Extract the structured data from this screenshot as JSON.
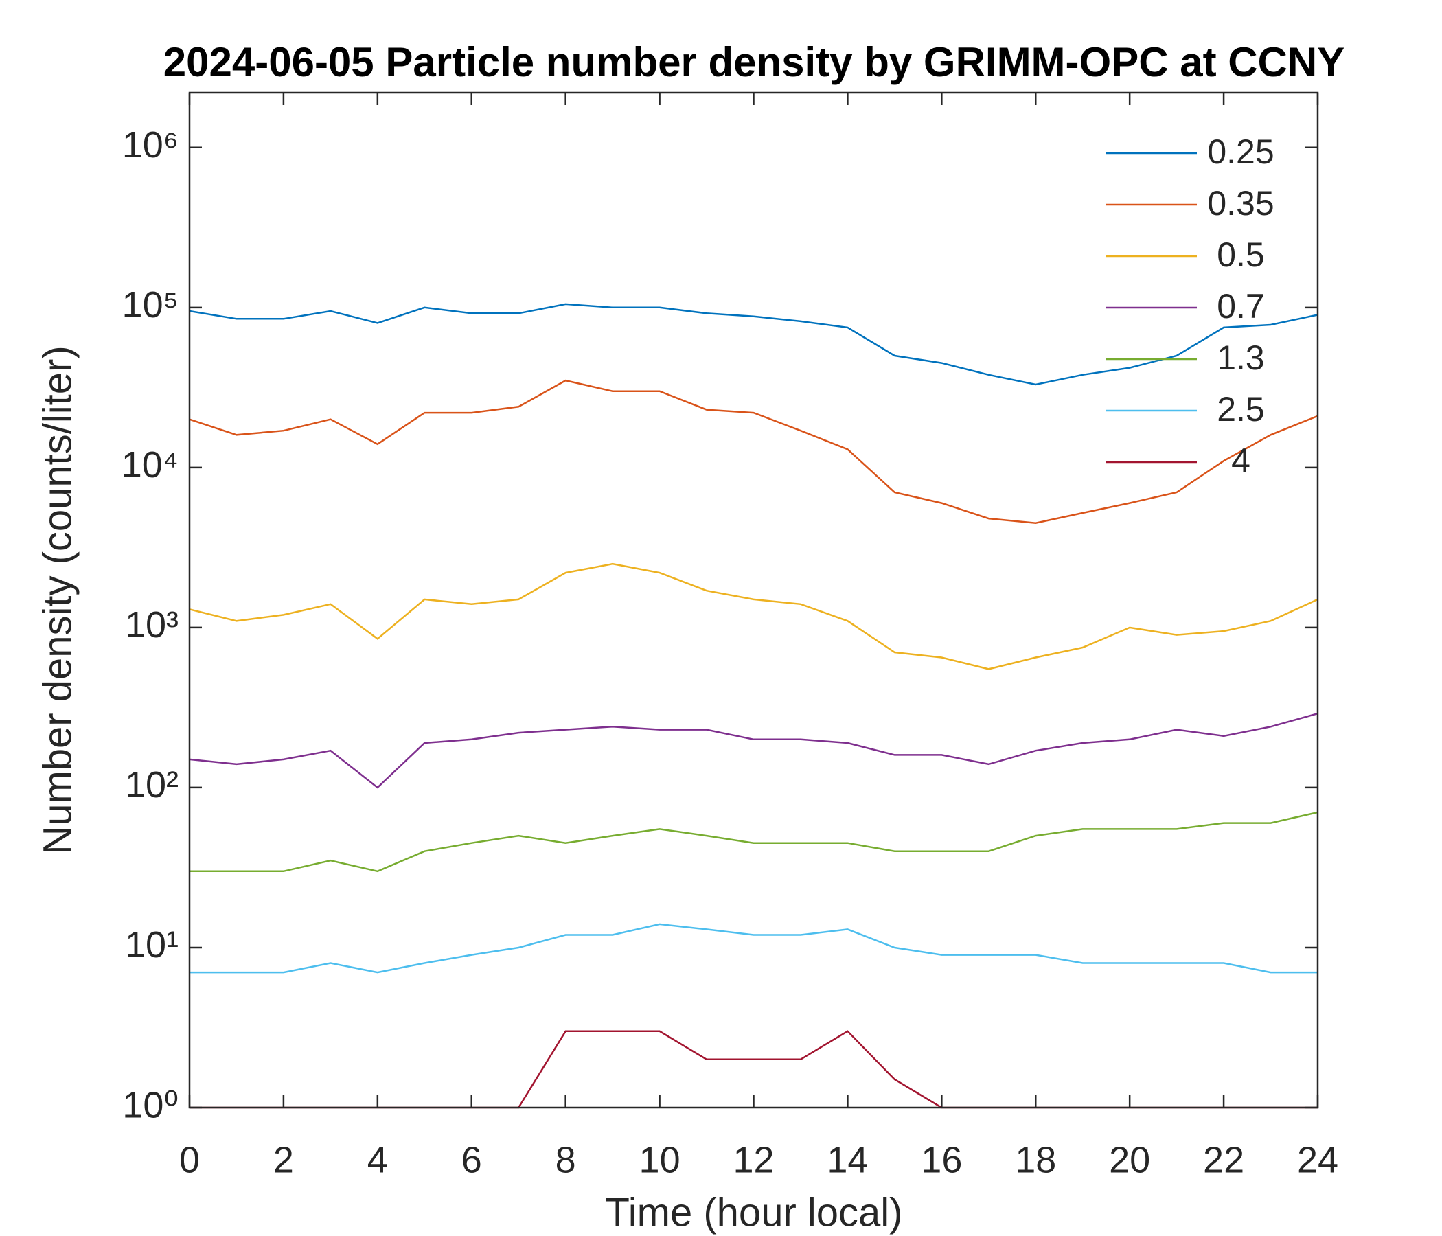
{
  "chart_data": {
    "type": "line",
    "title": "2024-06-05 Particle number density by GRIMM-OPC at CCNY",
    "x_label": "Time (hour local)",
    "y_label": "Number density (counts/liter)",
    "y_scale": "log",
    "legend": "upper right",
    "xlim": [
      0,
      24
    ],
    "xticks": [
      0,
      2,
      4,
      6,
      8,
      10,
      12,
      14,
      16,
      18,
      20,
      22,
      24
    ],
    "ylim": [
      1,
      2200000
    ],
    "yticks": [
      {
        "value": 1,
        "label": "10⁰"
      },
      {
        "value": 10,
        "label": "10¹"
      },
      {
        "value": 100,
        "label": "10²"
      },
      {
        "value": 1000,
        "label": "10³"
      },
      {
        "value": 10000,
        "label": "10⁴"
      },
      {
        "value": 100000,
        "label": "10⁵"
      },
      {
        "value": 1000000,
        "label": "10⁶"
      }
    ],
    "x": [
      0,
      1,
      2,
      3,
      4,
      5,
      6,
      7,
      8,
      9,
      10,
      11,
      12,
      13,
      14,
      15,
      16,
      17,
      18,
      19,
      20,
      21,
      22,
      23,
      24
    ],
    "series": [
      {
        "name": "0.25",
        "color": "#0072BD",
        "values": [
          95000,
          85000,
          85000,
          95000,
          80000,
          100000,
          92000,
          92000,
          105000,
          100000,
          100000,
          92000,
          88000,
          82000,
          75000,
          50000,
          45000,
          38000,
          33000,
          38000,
          42000,
          50000,
          75000,
          78000,
          90000
        ]
      },
      {
        "name": "0.35",
        "color": "#D95319",
        "values": [
          20000,
          16000,
          17000,
          20000,
          14000,
          22000,
          22000,
          24000,
          35000,
          30000,
          30000,
          23000,
          22000,
          17000,
          13000,
          7000,
          6000,
          4800,
          4500,
          5200,
          6000,
          7000,
          11000,
          16000,
          21000
        ]
      },
      {
        "name": "0.5",
        "color": "#EDB120",
        "values": [
          1300,
          1100,
          1200,
          1400,
          850,
          1500,
          1400,
          1500,
          2200,
          2500,
          2200,
          1700,
          1500,
          1400,
          1100,
          700,
          650,
          550,
          650,
          750,
          1000,
          900,
          950,
          1100,
          1500
        ]
      },
      {
        "name": "0.7",
        "color": "#7E2F8E",
        "values": [
          150,
          140,
          150,
          170,
          100,
          190,
          200,
          220,
          230,
          240,
          230,
          230,
          200,
          200,
          190,
          160,
          160,
          140,
          170,
          190,
          200,
          230,
          210,
          240,
          290
        ]
      },
      {
        "name": "1.3",
        "color": "#77AC30",
        "values": [
          30,
          30,
          30,
          35,
          30,
          40,
          45,
          50,
          45,
          50,
          55,
          50,
          45,
          45,
          45,
          40,
          40,
          40,
          50,
          55,
          55,
          55,
          60,
          60,
          70
        ]
      },
      {
        "name": "2.5",
        "color": "#4DBEEE",
        "values": [
          7,
          7,
          7,
          8,
          7,
          8,
          9,
          10,
          12,
          12,
          14,
          13,
          12,
          12,
          13,
          10,
          9,
          9,
          9,
          8,
          8,
          8,
          8,
          7,
          7
        ]
      },
      {
        "name": "4",
        "color": "#A2142F",
        "values": [
          1,
          1,
          1,
          1,
          1,
          1,
          1,
          1,
          3,
          3,
          3,
          2,
          2,
          2,
          3,
          1.5,
          1,
          1,
          1,
          1,
          1,
          1,
          1,
          1,
          1
        ]
      }
    ]
  }
}
